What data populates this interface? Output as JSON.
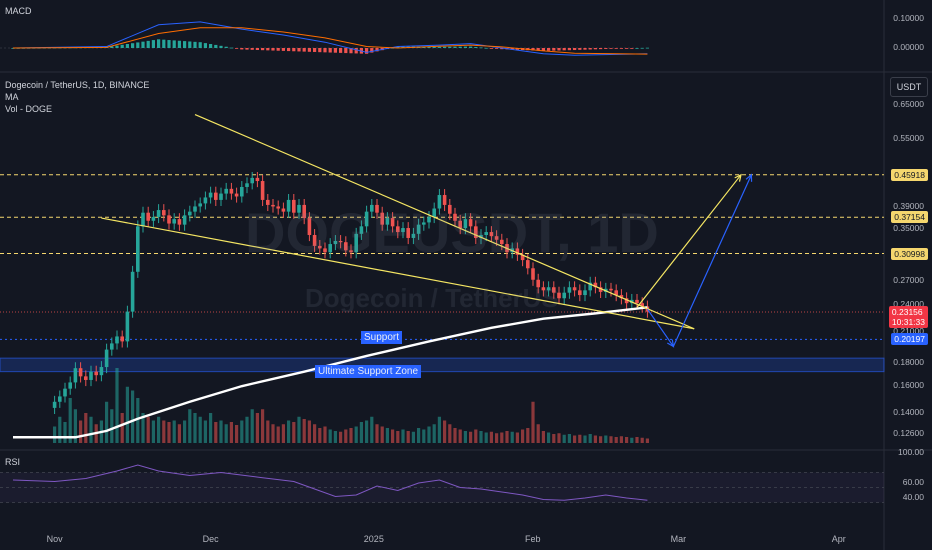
{
  "symbol": {
    "title": "Dogecoin / TetherUS, 1D, BINANCE",
    "ma_label": "MA",
    "vol_label": "Vol - DOGE",
    "watermark_ticker": "DOGEUSDT, 1D",
    "watermark_name": "Dogecoin / TetherUS",
    "unit": "USDT"
  },
  "panes": {
    "macd_label": "MACD",
    "rsi_label": "RSI"
  },
  "price_axis": [
    {
      "text": "0.65000",
      "v": 0.65
    },
    {
      "text": "0.55000",
      "v": 0.55
    },
    {
      "text": "0.39000",
      "v": 0.39
    },
    {
      "text": "0.35000",
      "v": 0.35
    },
    {
      "text": "0.27000",
      "v": 0.27
    },
    {
      "text": "0.24000",
      "v": 0.24
    },
    {
      "text": "0.21000",
      "v": 0.21
    },
    {
      "text": "0.18000",
      "v": 0.18
    },
    {
      "text": "0.16000",
      "v": 0.16
    },
    {
      "text": "0.14000",
      "v": 0.14
    },
    {
      "text": "0.12600",
      "v": 0.126
    }
  ],
  "price_tags": [
    {
      "text": "0.45918",
      "v": 0.45918,
      "color": "#f5d76e"
    },
    {
      "text": "0.37154",
      "v": 0.37154,
      "color": "#f5d76e"
    },
    {
      "text": "0.30998",
      "v": 0.30998,
      "color": "#f5d76e"
    },
    {
      "text": "0.23156",
      "v": 0.23156,
      "color": "#f23645",
      "sub": "10:31:33"
    },
    {
      "text": "0.20197",
      "v": 0.20197,
      "color": "#2962ff"
    }
  ],
  "macd_axis": [
    {
      "text": "0.10000",
      "v": 0.1
    },
    {
      "text": "0.00000",
      "v": 0.0
    }
  ],
  "rsi_axis": [
    {
      "text": "100.00",
      "v": 100
    },
    {
      "text": "60.00",
      "v": 60
    },
    {
      "text": "40.00",
      "v": 40
    }
  ],
  "time_axis": [
    {
      "text": "Nov",
      "day": 0
    },
    {
      "text": "Dec",
      "day": 30
    },
    {
      "text": "2025",
      "day": 61
    },
    {
      "text": "Feb",
      "day": 92
    },
    {
      "text": "Mar",
      "day": 120
    },
    {
      "text": "Apr",
      "day": 151
    }
  ],
  "annotations": {
    "support": "Support",
    "ultimate_support": "Ultimate Support Zone"
  },
  "colors": {
    "bg": "#131722",
    "up": "#26a69a",
    "down": "#ef5350",
    "trend": "#f5e663",
    "ma": "#ffffff",
    "blue": "#2962ff",
    "dash": "#f5d76e",
    "rsi": "#7e57c2"
  },
  "chart_data": {
    "type": "candlestick",
    "scale": "log",
    "ylim": [
      0.12,
      0.68
    ],
    "xlim_days": [
      -8,
      160
    ],
    "x_start_label": "Nov",
    "levels": [
      0.45918,
      0.37154,
      0.30998,
      0.20197
    ],
    "support_zone": [
      0.172,
      0.184
    ],
    "closes": [
      0.148,
      0.152,
      0.158,
      0.163,
      0.175,
      0.168,
      0.165,
      0.172,
      0.169,
      0.176,
      0.192,
      0.198,
      0.205,
      0.2,
      0.232,
      0.283,
      0.355,
      0.38,
      0.365,
      0.372,
      0.385,
      0.375,
      0.36,
      0.368,
      0.358,
      0.375,
      0.382,
      0.392,
      0.398,
      0.41,
      0.42,
      0.405,
      0.418,
      0.428,
      0.418,
      0.412,
      0.432,
      0.44,
      0.452,
      0.445,
      0.405,
      0.395,
      0.392,
      0.388,
      0.382,
      0.405,
      0.38,
      0.395,
      0.37,
      0.34,
      0.322,
      0.318,
      0.312,
      0.325,
      0.33,
      0.328,
      0.315,
      0.312,
      0.342,
      0.355,
      0.382,
      0.395,
      0.38,
      0.358,
      0.37,
      0.355,
      0.345,
      0.352,
      0.335,
      0.342,
      0.358,
      0.362,
      0.372,
      0.388,
      0.415,
      0.395,
      0.378,
      0.365,
      0.352,
      0.368,
      0.355,
      0.335,
      0.34,
      0.345,
      0.338,
      0.332,
      0.325,
      0.312,
      0.318,
      0.308,
      0.3,
      0.288,
      0.272,
      0.262,
      0.258,
      0.262,
      0.255,
      0.248,
      0.255,
      0.262,
      0.258,
      0.252,
      0.258,
      0.268,
      0.262,
      0.256,
      0.26,
      0.258,
      0.252,
      0.248,
      0.242,
      0.246,
      0.242,
      0.238,
      0.232
    ],
    "ma": [
      [
        -8,
        0.124
      ],
      [
        4,
        0.124
      ],
      [
        10,
        0.128
      ],
      [
        16,
        0.136
      ],
      [
        26,
        0.148
      ],
      [
        36,
        0.16
      ],
      [
        48,
        0.172
      ],
      [
        60,
        0.186
      ],
      [
        72,
        0.2
      ],
      [
        84,
        0.214
      ],
      [
        94,
        0.224
      ],
      [
        104,
        0.23
      ],
      [
        114,
        0.237
      ]
    ],
    "trend_upper": [
      [
        27,
        0.62
      ],
      [
        123,
        0.213
      ]
    ],
    "trend_lower": [
      [
        9,
        0.37
      ],
      [
        123,
        0.213
      ]
    ],
    "projections": [
      {
        "color": "yellow",
        "points": [
          [
            112,
            0.237
          ],
          [
            132,
            0.459
          ]
        ]
      },
      {
        "color": "blue",
        "points": [
          [
            114,
            0.235
          ],
          [
            119,
            0.195
          ],
          [
            134,
            0.459
          ]
        ]
      }
    ],
    "volume": [
      0.22,
      0.35,
      0.28,
      0.6,
      0.45,
      0.3,
      0.4,
      0.35,
      0.25,
      0.3,
      0.55,
      0.45,
      1.0,
      0.4,
      0.75,
      0.7,
      0.6,
      0.4,
      0.35,
      0.3,
      0.35,
      0.3,
      0.28,
      0.3,
      0.25,
      0.3,
      0.45,
      0.4,
      0.35,
      0.3,
      0.4,
      0.28,
      0.3,
      0.25,
      0.28,
      0.24,
      0.3,
      0.35,
      0.45,
      0.4,
      0.45,
      0.3,
      0.25,
      0.22,
      0.25,
      0.3,
      0.28,
      0.35,
      0.32,
      0.3,
      0.25,
      0.2,
      0.22,
      0.18,
      0.16,
      0.15,
      0.18,
      0.2,
      0.22,
      0.28,
      0.3,
      0.35,
      0.25,
      0.22,
      0.2,
      0.18,
      0.16,
      0.18,
      0.16,
      0.15,
      0.2,
      0.18,
      0.22,
      0.25,
      0.35,
      0.3,
      0.25,
      0.2,
      0.18,
      0.16,
      0.15,
      0.18,
      0.16,
      0.14,
      0.15,
      0.13,
      0.14,
      0.16,
      0.15,
      0.14,
      0.18,
      0.2,
      0.55,
      0.25,
      0.16,
      0.14,
      0.12,
      0.13,
      0.11,
      0.12,
      0.1,
      0.11,
      0.1,
      0.12,
      0.1,
      0.09,
      0.1,
      0.09,
      0.08,
      0.09,
      0.08,
      0.07,
      0.08,
      0.07,
      0.06
    ],
    "macd_line": [
      [
        -8,
        0.0
      ],
      [
        10,
        0.005
      ],
      [
        20,
        0.08
      ],
      [
        28,
        0.09
      ],
      [
        36,
        0.065
      ],
      [
        44,
        0.045
      ],
      [
        52,
        0.02
      ],
      [
        60,
        -0.015
      ],
      [
        66,
        0.005
      ],
      [
        74,
        0.01
      ],
      [
        80,
        0.015
      ],
      [
        86,
        0.0
      ],
      [
        94,
        -0.02
      ],
      [
        100,
        -0.025
      ],
      [
        108,
        -0.022
      ],
      [
        114,
        -0.02
      ]
    ],
    "macd_signal": [
      [
        -8,
        0.0
      ],
      [
        10,
        0.002
      ],
      [
        20,
        0.05
      ],
      [
        28,
        0.07
      ],
      [
        36,
        0.07
      ],
      [
        44,
        0.055
      ],
      [
        52,
        0.035
      ],
      [
        60,
        0.005
      ],
      [
        66,
        0.0
      ],
      [
        74,
        0.006
      ],
      [
        80,
        0.01
      ],
      [
        86,
        0.004
      ],
      [
        94,
        -0.01
      ],
      [
        100,
        -0.018
      ],
      [
        108,
        -0.02
      ],
      [
        114,
        -0.021
      ]
    ],
    "rsi": [
      [
        -8,
        60
      ],
      [
        0,
        58
      ],
      [
        6,
        62
      ],
      [
        12,
        72
      ],
      [
        16,
        80
      ],
      [
        20,
        72
      ],
      [
        26,
        66
      ],
      [
        32,
        70
      ],
      [
        40,
        63
      ],
      [
        46,
        58
      ],
      [
        50,
        48
      ],
      [
        54,
        38
      ],
      [
        58,
        40
      ],
      [
        62,
        52
      ],
      [
        66,
        46
      ],
      [
        70,
        56
      ],
      [
        74,
        60
      ],
      [
        78,
        50
      ],
      [
        82,
        48
      ],
      [
        86,
        44
      ],
      [
        90,
        40
      ],
      [
        94,
        34
      ],
      [
        98,
        33
      ],
      [
        102,
        36
      ],
      [
        106,
        40
      ],
      [
        110,
        36
      ],
      [
        114,
        33
      ]
    ]
  }
}
